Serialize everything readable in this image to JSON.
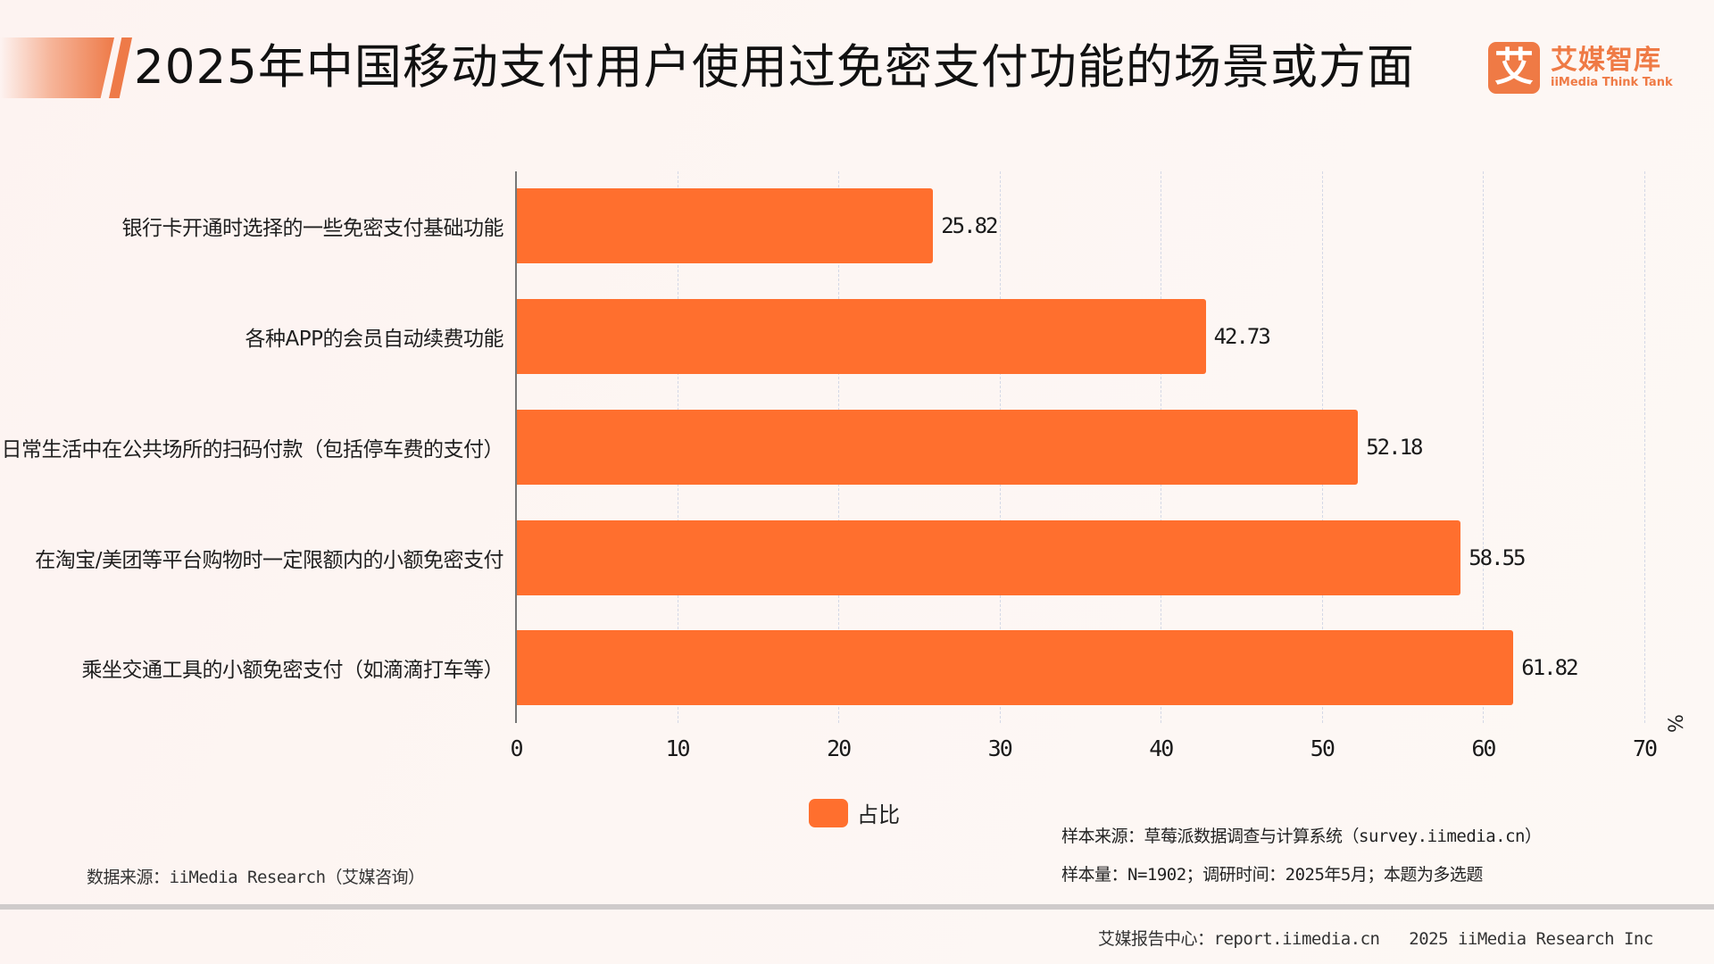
{
  "header": {
    "title": "2025年中国移动支付用户使用过免密支付功能的场景或方面",
    "logo_mark": "艾",
    "logo_cn": "艾媒智库",
    "logo_en": "iiMedia Think Tank"
  },
  "chart_data": {
    "type": "bar",
    "orientation": "horizontal",
    "title": "2025年中国移动支付用户使用过免密支付功能的场景或方面",
    "categories": [
      "银行卡开通时选择的一些免密支付基础功能",
      "各种APP的会员自动续费功能",
      "日常生活中在公共场所的扫码付款（包括停车费的支付）",
      "在淘宝/美团等平台购物时一定限额内的小额免密支付",
      "乘坐交通工具的小额免密支付（如滴滴打车等）"
    ],
    "series": [
      {
        "name": "占比",
        "color": "#ff6f2e",
        "values": [
          25.82,
          42.73,
          52.18,
          58.55,
          61.82
        ]
      }
    ],
    "value_labels": [
      "25.82",
      "42.73",
      "52.18",
      "58.55",
      "61.82"
    ],
    "xlabel": "%",
    "ylabel": "",
    "xlim": [
      0,
      70
    ],
    "x_ticks": [
      "0",
      "10",
      "20",
      "30",
      "40",
      "50",
      "60",
      "70"
    ],
    "grid": "vertical dashed",
    "legend_position": "bottom-center"
  },
  "legend": {
    "label": "占比"
  },
  "axis": {
    "unit": "%"
  },
  "sources": {
    "data_source": "数据来源：iiMedia Research（艾媒咨询）",
    "sample_source": "样本来源：草莓派数据调查与计算系统（survey.iimedia.cn）",
    "sample_size": "样本量：N=1902；调研时间：2025年5月；本题为多选题"
  },
  "footer": {
    "report_center": "艾媒报告中心：report.iimedia.cn",
    "copyright": "2025 iiMedia Research Inc"
  },
  "colors": {
    "accent": "#ff6f2e",
    "brand": "#ef7a45",
    "background": "#fdf5f2"
  }
}
